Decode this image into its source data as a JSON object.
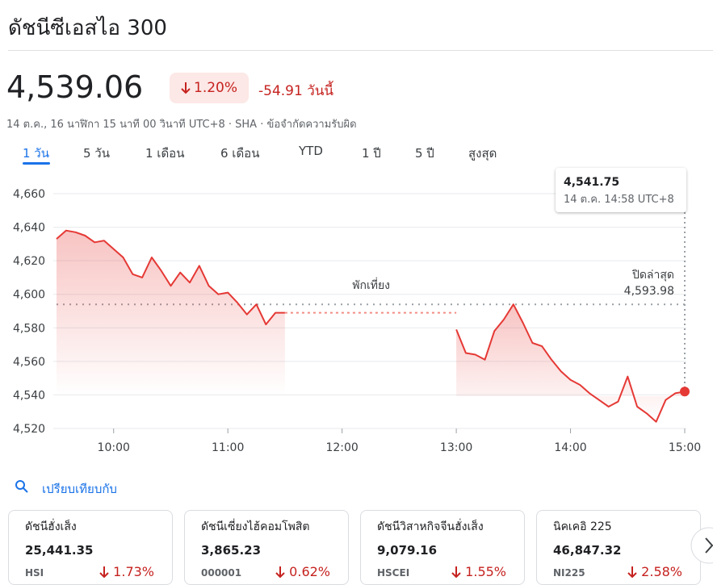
{
  "header": {
    "title": "ดัชนีซีเอสไอ 300",
    "price": "4,539.06",
    "change_percent": "1.20%",
    "change": "-54.91 วันนี้",
    "meta": "14 ต.ค., 16 นาฬิกา 15 นาที 00 วินาที UTC+8 · SHA · ข้อจำกัดความรับผิด"
  },
  "tabs": [
    "1 วัน",
    "5 วัน",
    "1 เดือน",
    "6 เดือน",
    "YTD",
    "1 ปี",
    "5 ปี",
    "สูงสุด"
  ],
  "chart_data": {
    "type": "line",
    "color": "#e53935",
    "x": [
      "09:30",
      "09:35",
      "09:40",
      "09:45",
      "09:50",
      "09:55",
      "10:00",
      "10:05",
      "10:10",
      "10:15",
      "10:20",
      "10:25",
      "10:30",
      "10:35",
      "10:40",
      "10:45",
      "10:50",
      "10:55",
      "11:00",
      "11:05",
      "11:10",
      "11:15",
      "11:20",
      "11:25",
      "11:30",
      "12:00",
      "13:00",
      "13:05",
      "13:10",
      "13:15",
      "13:20",
      "13:25",
      "13:30",
      "13:35",
      "13:40",
      "13:45",
      "13:50",
      "13:55",
      "14:00",
      "14:05",
      "14:10",
      "14:15",
      "14:20",
      "14:25",
      "14:30",
      "14:35",
      "14:40",
      "14:45",
      "14:50",
      "14:55",
      "15:00"
    ],
    "values": [
      4633,
      4638,
      4637,
      4635,
      4631,
      4632,
      4627,
      4622,
      4612,
      4610,
      4622,
      4614,
      4605,
      4613,
      4607,
      4617,
      4605,
      4600,
      4601,
      4595,
      4588,
      4594,
      4582,
      4589,
      4589,
      null,
      4579,
      4565,
      4564,
      4561,
      4578,
      4585,
      4594,
      4583,
      4571,
      4569,
      4561,
      4554,
      4549,
      4546,
      4541,
      4537,
      4533,
      4536,
      4551,
      4533,
      4529,
      4524,
      4537,
      4541,
      4542
    ],
    "xlim": [
      "09:30",
      "15:00"
    ],
    "xticks": [
      "10:00",
      "11:00",
      "12:00",
      "13:00",
      "14:00",
      "15:00"
    ],
    "ylim": [
      4520,
      4660
    ],
    "yticks": [
      {
        "value": 4520,
        "label": "4,520"
      },
      {
        "value": 4540,
        "label": "4,540"
      },
      {
        "value": 4560,
        "label": "4,560"
      },
      {
        "value": 4580,
        "label": "4,580"
      },
      {
        "value": 4600,
        "label": "4,600"
      },
      {
        "value": 4620,
        "label": "4,620"
      },
      {
        "value": 4640,
        "label": "4,640"
      },
      {
        "value": 4660,
        "label": "4,660"
      }
    ],
    "grid": true,
    "reference_line": {
      "label": "ปิดล่าสุด",
      "value": 4593.98,
      "value_label": "4,593.98"
    },
    "annotation": {
      "text": "พักเที่ยง",
      "x": "12:00"
    },
    "tooltip": {
      "value": "4,541.75",
      "time": "14 ต.ค. 14:58 UTC+8",
      "x": "15:00"
    }
  },
  "compare": {
    "title": "เปรียบเทียบกับ",
    "cards": [
      {
        "name": "ดัชนีฮั่งเส็ง",
        "value": "25,441.35",
        "symbol": "HSI",
        "change": "1.73%"
      },
      {
        "name": "ดัชนีเซี่ยงไฮ้คอมโพสิต",
        "value": "3,865.23",
        "symbol": "000001",
        "change": "0.62%"
      },
      {
        "name": "ดัชนีวิสาหกิจจีนฮั่งเส็ง",
        "value": "9,079.16",
        "symbol": "HSCEI",
        "change": "1.55%"
      },
      {
        "name": "นิคเคอิ 225",
        "value": "46,847.32",
        "symbol": "NI225",
        "change": "2.58%"
      }
    ]
  }
}
